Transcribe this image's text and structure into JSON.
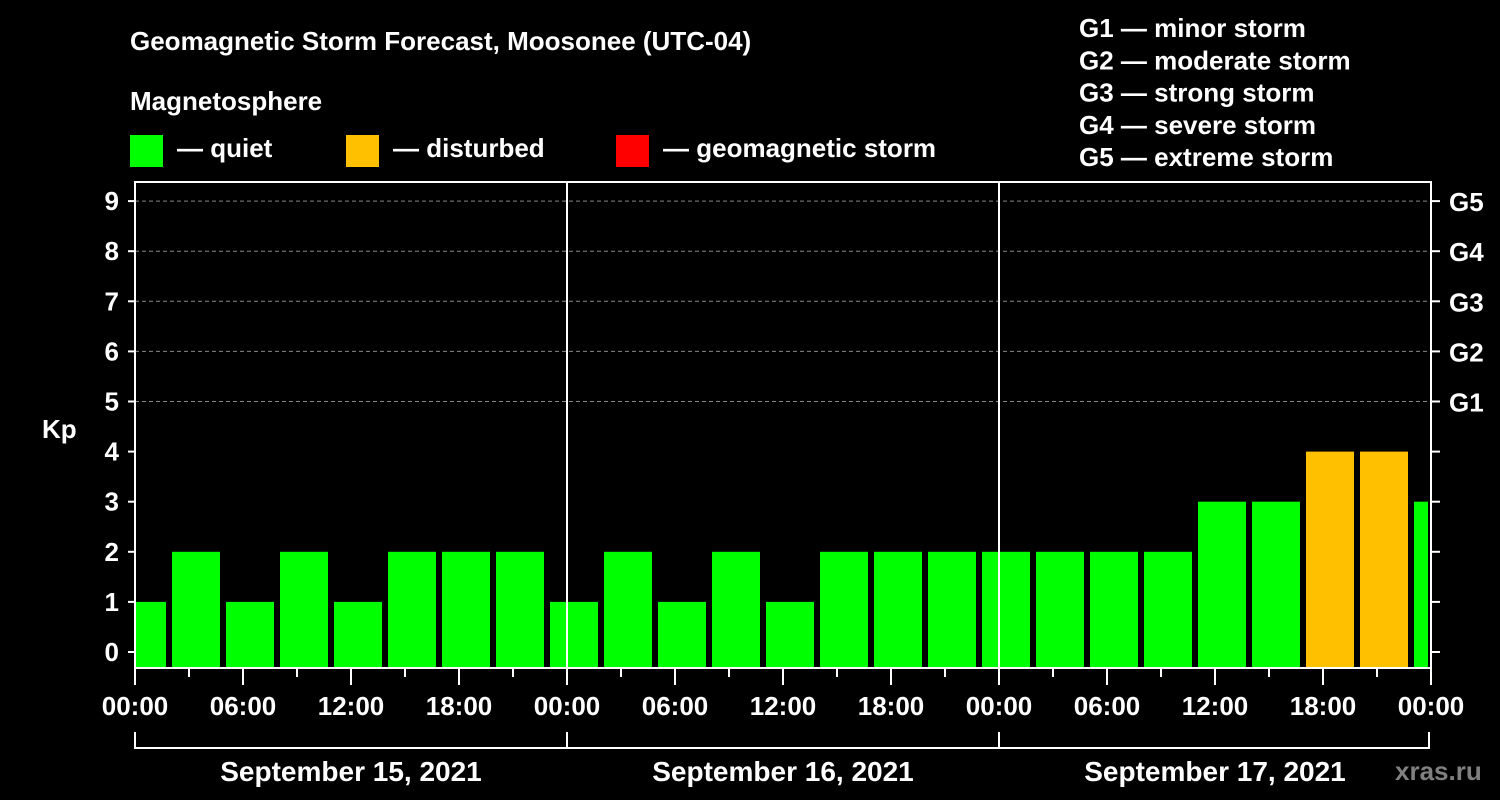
{
  "chart_data": {
    "type": "bar",
    "title": "Geomagnetic Storm Forecast, Moosonee (UTC-04)",
    "ylabel": "Kp",
    "ylim": [
      0,
      9
    ],
    "yticks": [
      "0",
      "1",
      "2",
      "3",
      "4",
      "5",
      "6",
      "7",
      "8",
      "9"
    ],
    "right_ticks": [
      {
        "kp": 5,
        "label": "G1"
      },
      {
        "kp": 6,
        "label": "G2"
      },
      {
        "kp": 7,
        "label": "G3"
      },
      {
        "kp": 8,
        "label": "G4"
      },
      {
        "kp": 9,
        "label": "G5"
      }
    ],
    "xticks": [
      "00:00",
      "06:00",
      "12:00",
      "18:00",
      "00:00",
      "06:00",
      "12:00",
      "18:00",
      "00:00",
      "06:00",
      "12:00",
      "18:00",
      "00:00"
    ],
    "days": [
      "September 15, 2021",
      "September 16, 2021",
      "September 17, 2021"
    ],
    "x_range_hours": [
      0,
      72
    ],
    "bar_start_hour": -1,
    "bar_width_hours": 3,
    "values": [
      1,
      2,
      1,
      2,
      1,
      2,
      2,
      2,
      1,
      2,
      1,
      2,
      1,
      2,
      2,
      2,
      2,
      2,
      2,
      2,
      3,
      3,
      4,
      4,
      3
    ],
    "status": [
      "quiet",
      "quiet",
      "quiet",
      "quiet",
      "quiet",
      "quiet",
      "quiet",
      "quiet",
      "quiet",
      "quiet",
      "quiet",
      "quiet",
      "quiet",
      "quiet",
      "quiet",
      "quiet",
      "quiet",
      "quiet",
      "quiet",
      "quiet",
      "quiet",
      "quiet",
      "disturbed",
      "disturbed",
      "quiet"
    ],
    "legend_title": "Magnetosphere",
    "legend": [
      {
        "key": "quiet",
        "label": "— quiet",
        "color": "#00ff00"
      },
      {
        "key": "disturbed",
        "label": "— disturbed",
        "color": "#ffc000"
      },
      {
        "key": "storm",
        "label": "— geomagnetic storm",
        "color": "#ff0000"
      }
    ],
    "scale_legend": [
      "G1 — minor storm",
      "G2 — moderate storm",
      "G3 — strong storm",
      "G4 — severe storm",
      "G5 — extreme storm"
    ],
    "grid": true
  },
  "watermark": "xras.ru"
}
